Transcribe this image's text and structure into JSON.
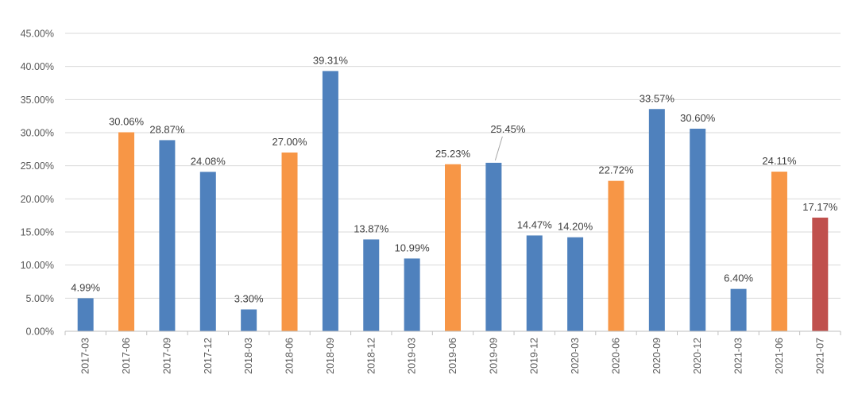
{
  "chart_data": {
    "type": "bar",
    "title": "",
    "xlabel": "",
    "ylabel": "",
    "ylim": [
      0,
      45
    ],
    "y_ticks": [
      "0.00%",
      "5.00%",
      "10.00%",
      "15.00%",
      "20.00%",
      "25.00%",
      "30.00%",
      "35.00%",
      "40.00%",
      "45.00%"
    ],
    "y_tick_values": [
      0,
      5,
      10,
      15,
      20,
      25,
      30,
      35,
      40,
      45
    ],
    "grid": true,
    "legend": "none",
    "categories": [
      "2017-03",
      "2017-06",
      "2017-09",
      "2017-12",
      "2018-03",
      "2018-06",
      "2018-09",
      "2018-12",
      "2019-03",
      "2019-06",
      "2019-09",
      "2019-12",
      "2020-03",
      "2020-06",
      "2020-09",
      "2020-12",
      "2021-03",
      "2021-06",
      "2021-07"
    ],
    "values": [
      4.99,
      30.06,
      28.87,
      24.08,
      3.3,
      27.0,
      39.31,
      13.87,
      10.99,
      25.23,
      25.45,
      14.47,
      14.2,
      22.72,
      33.57,
      30.6,
      6.4,
      24.11,
      17.17
    ],
    "labels": [
      "4.99%",
      "30.06%",
      "28.87%",
      "24.08%",
      "3.30%",
      "27.00%",
      "39.31%",
      "13.87%",
      "10.99%",
      "25.23%",
      "25.45%",
      "14.47%",
      "14.20%",
      "22.72%",
      "33.57%",
      "30.60%",
      "6.40%",
      "24.11%",
      "17.17%"
    ],
    "colors": [
      "#4f81bd",
      "#f79646",
      "#4f81bd",
      "#4f81bd",
      "#4f81bd",
      "#f79646",
      "#4f81bd",
      "#4f81bd",
      "#4f81bd",
      "#f79646",
      "#4f81bd",
      "#4f81bd",
      "#4f81bd",
      "#f79646",
      "#4f81bd",
      "#4f81bd",
      "#4f81bd",
      "#f79646",
      "#c0504d"
    ]
  }
}
